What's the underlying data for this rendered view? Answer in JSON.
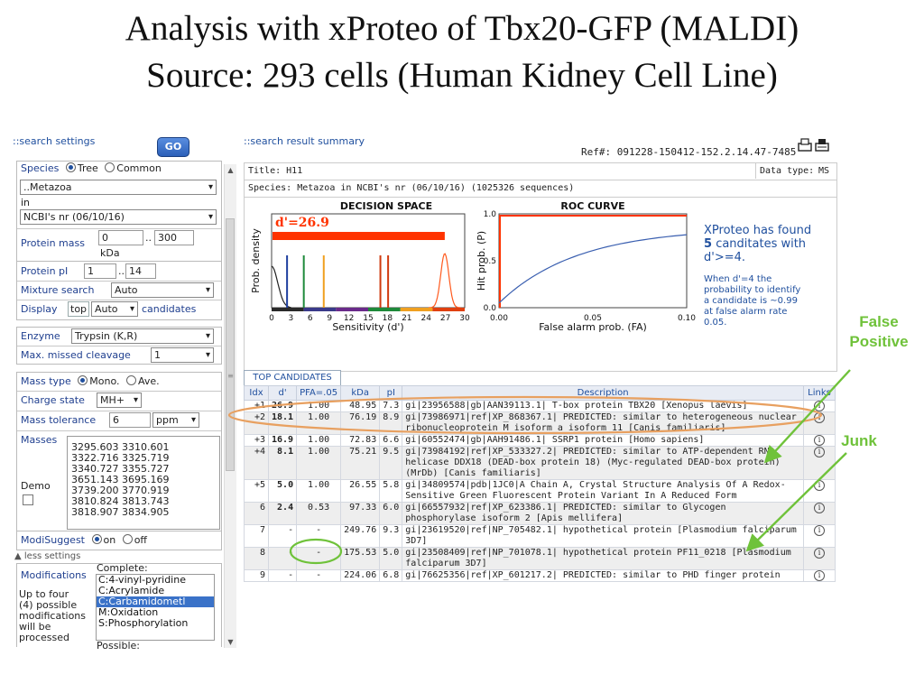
{
  "slide": {
    "title_line1": "Analysis with xProteo of Tbx20-GFP (MALDI)",
    "title_line2": "Source: 293 cells (Human Kidney Cell Line)"
  },
  "settings": {
    "header": "::search settings",
    "go_label": "GO",
    "species_label": "Species",
    "tree_label": "Tree",
    "common_label": "Common",
    "species_value": "..Metazoa",
    "in_label": "in",
    "database_value": "NCBI's nr (06/10/16)",
    "protein_mass_label": "Protein mass",
    "mass_min": "0",
    "mass_sep": "..",
    "mass_max": "300",
    "mass_unit": "kDa",
    "protein_pi_label": "Protein pI",
    "pi_min": "1",
    "pi_sep": "..",
    "pi_max": "14",
    "mixture_label": "Mixture search",
    "mixture_value": "Auto",
    "display_label": "Display",
    "display_top": "top",
    "display_value": "Auto",
    "display_suffix": "candidates",
    "enzyme_label": "Enzyme",
    "enzyme_value": "Trypsin (K,R)",
    "missed_label": "Max. missed cleavage",
    "missed_value": "1",
    "mass_type_label": "Mass type",
    "mono_label": "Mono.",
    "ave_label": "Ave.",
    "charge_label": "Charge state",
    "charge_value": "MH+",
    "tolerance_label": "Mass tolerance",
    "tolerance_value": "6",
    "tolerance_unit": "ppm",
    "masses_label": "Masses",
    "masses": [
      "3295.603 3310.601",
      "3322.716 3325.719",
      "3340.727 3355.727",
      "3651.143 3695.169",
      "3739.200 3770.919",
      "3810.824 3813.743",
      "3818.907 3834.905"
    ],
    "demo_label": "Demo",
    "modisuggest_label": "ModiSuggest",
    "on_label": "on",
    "off_label": "off",
    "less_settings": "less settings",
    "modifications_label": "Modifications",
    "modifications_note": [
      "Up to four",
      "(4) possible",
      "modifications",
      "will be",
      "processed"
    ],
    "complete_label": "Complete:",
    "mod_options": [
      "C:4-vinyl-pyridine",
      "C:Acrylamide",
      "C:Carbamidometl",
      "M:Oxidation",
      "S:Phosphorylation"
    ],
    "possible_label": "Possible:"
  },
  "results": {
    "header": "::search result summary",
    "ref": "Ref#: 091228-150412-152.2.14.47-7485",
    "title_label": "Title:",
    "title_value": "H11",
    "data_type_label": "Data type:",
    "data_type_value": "MS",
    "species_label": "Species:",
    "species_value": "Metazoa in NCBI's nr (06/10/16) (1025326 sequences)",
    "found_line1": "XProteo has found",
    "found_count": "5",
    "found_line2": "canditates with",
    "found_line3": "d'>=4.",
    "note": [
      "When d'=4 the",
      "probability to identify",
      "a candidate is ~0.99",
      "at false alarm rate",
      "0.05."
    ],
    "tab_label": "TOP CANDIDATES",
    "columns": [
      "Idx",
      "d'",
      "PFA=.05",
      "kDa",
      "pI",
      "Description",
      "Links"
    ],
    "rows": [
      {
        "idx": "+1",
        "d": "26.9",
        "pfa": "1.00",
        "kda": "48.95",
        "pi": "7.3",
        "desc": "gi|23956588|gb|AAN39113.1| T-box protein TBX20 [Xenopus laevis]"
      },
      {
        "idx": "+2",
        "d": "18.1",
        "pfa": "1.00",
        "kda": "76.19",
        "pi": "8.9",
        "desc": "gi|73986971|ref|XP_868367.1| PREDICTED: similar to heterogeneous nuclear ribonucleoprotein M isoform a isoform 11 [Canis familiaris]"
      },
      {
        "idx": "+3",
        "d": "16.9",
        "pfa": "1.00",
        "kda": "72.83",
        "pi": "6.6",
        "desc": "gi|60552474|gb|AAH91486.1| SSRP1 protein [Homo sapiens]"
      },
      {
        "idx": "+4",
        "d": "8.1",
        "pfa": "1.00",
        "kda": "75.21",
        "pi": "9.5",
        "desc": "gi|73984192|ref|XP_533327.2| PREDICTED: similar to ATP-dependent RNA helicase DDX18 (DEAD-box protein 18) (Myc-regulated DEAD-box protein) (MrDb) [Canis familiaris]"
      },
      {
        "idx": "+5",
        "d": "5.0",
        "pfa": "1.00",
        "kda": "26.55",
        "pi": "5.8",
        "desc": "gi|34809574|pdb|1JC0|A Chain A, Crystal Structure Analysis Of A Redox-Sensitive Green Fluorescent Protein Variant In A Reduced Form"
      },
      {
        "idx": "6",
        "d": "2.4",
        "pfa": "0.53",
        "kda": "97.33",
        "pi": "6.0",
        "desc": "gi|66557932|ref|XP_623386.1| PREDICTED: similar to Glycogen phosphorylase isoform 2 [Apis mellifera]"
      },
      {
        "idx": "7",
        "d": "-",
        "pfa": "-",
        "kda": "249.76",
        "pi": "9.3",
        "desc": "gi|23619520|ref|NP_705482.1| hypothetical protein [Plasmodium falciparum 3D7]"
      },
      {
        "idx": "8",
        "d": "-",
        "pfa": "-",
        "kda": "175.53",
        "pi": "5.0",
        "desc": "gi|23508409|ref|NP_701078.1| hypothetical protein PF11_0218 [Plasmodium falciparum 3D7]"
      },
      {
        "idx": "9",
        "d": "-",
        "pfa": "-",
        "kda": "224.06",
        "pi": "6.8",
        "desc": "gi|76625356|ref|XP_601217.2| PREDICTED: similar to PHD finger protein"
      }
    ]
  },
  "decision_chart": {
    "title": "DECISION SPACE",
    "dprime_label": "d'=26.9",
    "xlabel": "Sensitivity (d')",
    "ylabel": "Prob. density",
    "xticks": [
      "0",
      "3",
      "6",
      "9",
      "12",
      "15",
      "18",
      "21",
      "24",
      "27",
      "30"
    ],
    "bar_value": 26.9,
    "xlim": [
      0,
      30
    ],
    "candidate_lines": [
      {
        "d": 2.4,
        "color": "#1f3f9f"
      },
      {
        "d": 5.0,
        "color": "#1e8a3a"
      },
      {
        "d": 8.1,
        "color": "#f0a020"
      },
      {
        "d": 16.9,
        "color": "#d03a10"
      },
      {
        "d": 18.1,
        "color": "#d03a10"
      }
    ]
  },
  "roc_chart": {
    "title": "ROC CURVE",
    "xlabel": "False alarm prob. (FA)",
    "ylabel": "Hit prob. (P)",
    "xticks": [
      "0.00",
      "0.05",
      "0.10"
    ],
    "yticks": [
      "1.0",
      "0.5",
      "0.0"
    ],
    "xlim": [
      0,
      0.1
    ],
    "ylim": [
      0,
      1
    ]
  },
  "annotations": {
    "false_positive_line1": "False",
    "false_positive_line2": "Positive",
    "junk": "Junk"
  },
  "colors": {
    "annotation_green": "#6fc23a",
    "annotation_orange": "#e8a060",
    "link_blue": "#1f4f9e",
    "decision_red": "#ff3300"
  }
}
